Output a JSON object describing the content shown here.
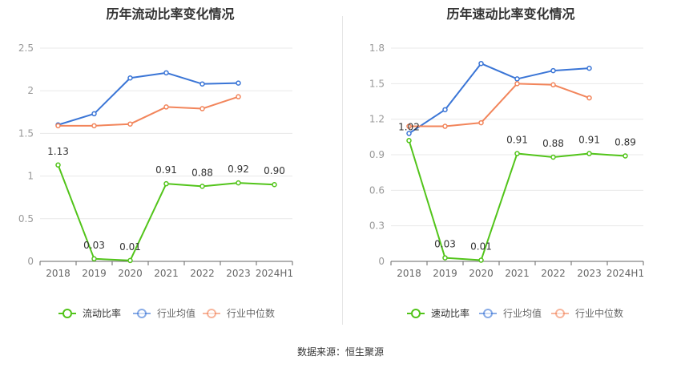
{
  "source": {
    "prefix": "数据来源：",
    "text": "恒生聚源"
  },
  "legend_labels": {
    "industry_avg": "行业均值",
    "industry_median": "行业中位数"
  },
  "colors": {
    "primary": "#52c41a",
    "average": "#3a75d6",
    "median": "#f2855b",
    "axis": "#999999",
    "grid": "#e8e8e8",
    "text": "#333333"
  },
  "chart_data": [
    {
      "type": "line",
      "title": "历年流动比率变化情况",
      "categories": [
        "2018",
        "2019",
        "2020",
        "2021",
        "2022",
        "2023",
        "2024H1"
      ],
      "ylim": [
        0,
        2.5
      ],
      "yticks": [
        0,
        0.5,
        1,
        1.5,
        2,
        2.5
      ],
      "ytick_labels": [
        "0",
        "0.5",
        "1",
        "1.5",
        "2",
        "2.5"
      ],
      "series": [
        {
          "key": "main",
          "name": "流动比率",
          "values": [
            1.13,
            0.03,
            0.01,
            0.91,
            0.88,
            0.92,
            0.9
          ],
          "labels": [
            "1.13",
            "0.03",
            "0.01",
            "0.91",
            "0.88",
            "0.92",
            "0.90"
          ]
        },
        {
          "key": "average",
          "name": "行业均值",
          "values": [
            1.6,
            1.73,
            2.15,
            2.21,
            2.08,
            2.09,
            null
          ]
        },
        {
          "key": "median",
          "name": "行业中位数",
          "values": [
            1.59,
            1.59,
            1.61,
            1.81,
            1.79,
            1.93,
            null
          ]
        }
      ]
    },
    {
      "type": "line",
      "title": "历年速动比率变化情况",
      "categories": [
        "2018",
        "2019",
        "2020",
        "2021",
        "2022",
        "2023",
        "2024H1"
      ],
      "ylim": [
        0,
        1.8
      ],
      "yticks": [
        0,
        0.3,
        0.6,
        0.9,
        1.2,
        1.5,
        1.8
      ],
      "ytick_labels": [
        "0",
        "0.3",
        "0.6",
        "0.9",
        "1.2",
        "1.5",
        "1.8"
      ],
      "series": [
        {
          "key": "main",
          "name": "速动比率",
          "values": [
            1.02,
            0.03,
            0.01,
            0.91,
            0.88,
            0.91,
            0.89
          ],
          "labels": [
            "1.02",
            "0.03",
            "0.01",
            "0.91",
            "0.88",
            "0.91",
            "0.89"
          ]
        },
        {
          "key": "average",
          "name": "行业均值",
          "values": [
            1.08,
            1.28,
            1.67,
            1.54,
            1.61,
            1.63,
            null
          ]
        },
        {
          "key": "median",
          "name": "行业中位数",
          "values": [
            1.14,
            1.14,
            1.17,
            1.5,
            1.49,
            1.38,
            null
          ]
        }
      ]
    }
  ]
}
